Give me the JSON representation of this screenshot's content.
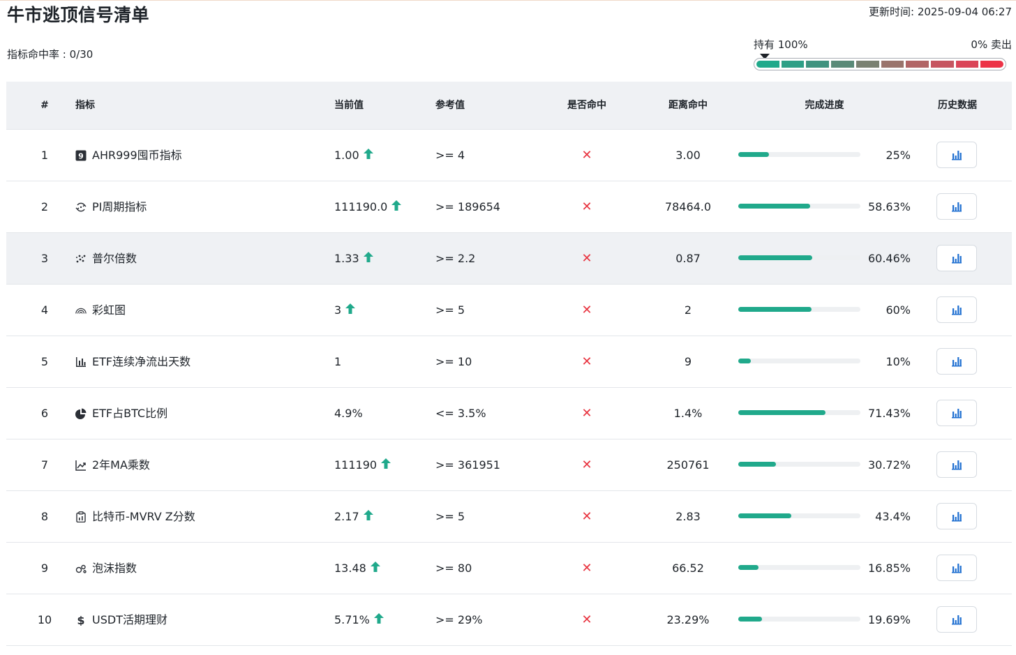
{
  "page": {
    "title": "牛市逃顶信号清单",
    "updated": "更新时间: 2025-09-04 06:27",
    "hit_rate": "指标命中率 : 0/30"
  },
  "gauge": {
    "left_label": "持有 100%",
    "right_label": "0% 卖出",
    "segment_colors": [
      "#20a98b",
      "#2e9f86",
      "#3f937f",
      "#5a8a78",
      "#7a8172",
      "#9a746c",
      "#b16566",
      "#c65560",
      "#da4558",
      "#ec3347"
    ],
    "pointer_level": 0
  },
  "table": {
    "headers": {
      "idx": "#",
      "name": "指标",
      "current": "当前值",
      "reference": "参考值",
      "hit": "是否命中",
      "distance": "距离命中",
      "progress": "完成进度",
      "history": "历史数据"
    },
    "rows": [
      {
        "idx": "1",
        "icon": "number-nine-icon",
        "name": "AHR999囤币指标",
        "current": "1.00",
        "trend": "up",
        "reference": ">= 4",
        "hit": "✕",
        "distance": "3.00",
        "progress": 0.25,
        "pct": "25%"
      },
      {
        "idx": "2",
        "icon": "cycle-icon",
        "name": "PI周期指标",
        "current": "111190.0",
        "trend": "up",
        "reference": ">= 189654",
        "hit": "✕",
        "distance": "78464.0",
        "progress": 0.5863,
        "pct": "58.63%"
      },
      {
        "idx": "3",
        "icon": "scatter-icon",
        "name": "普尔倍数",
        "current": "1.33",
        "trend": "up",
        "reference": ">= 2.2",
        "hit": "✕",
        "distance": "0.87",
        "progress": 0.6046,
        "pct": "60.46%"
      },
      {
        "idx": "4",
        "icon": "rainbow-icon",
        "name": "彩虹图",
        "current": "3",
        "trend": "up",
        "reference": ">= 5",
        "hit": "✕",
        "distance": "2",
        "progress": 0.6,
        "pct": "60%"
      },
      {
        "idx": "5",
        "icon": "bar-chart-icon",
        "name": "ETF连续净流出天数",
        "current": "1",
        "trend": "",
        "reference": ">= 10",
        "hit": "✕",
        "distance": "9",
        "progress": 0.1,
        "pct": "10%"
      },
      {
        "idx": "6",
        "icon": "pie-chart-icon",
        "name": "ETF占BTC比例",
        "current": "4.9%",
        "trend": "",
        "reference": "<= 3.5%",
        "hit": "✕",
        "distance": "1.4%",
        "progress": 0.7143,
        "pct": "71.43%"
      },
      {
        "idx": "7",
        "icon": "trend-line-icon",
        "name": "2年MA乘数",
        "current": "111190",
        "trend": "up",
        "reference": ">= 361951",
        "hit": "✕",
        "distance": "250761",
        "progress": 0.3072,
        "pct": "30.72%"
      },
      {
        "idx": "8",
        "icon": "clipboard-icon",
        "name": "比特币-MVRV Z分数",
        "current": "2.17",
        "trend": "up",
        "reference": ">= 5",
        "hit": "✕",
        "distance": "2.83",
        "progress": 0.434,
        "pct": "43.4%"
      },
      {
        "idx": "9",
        "icon": "bubbles-icon",
        "name": "泡沫指数",
        "current": "13.48",
        "trend": "up",
        "reference": ">= 80",
        "hit": "✕",
        "distance": "66.52",
        "progress": 0.1685,
        "pct": "16.85%"
      },
      {
        "idx": "10",
        "icon": "dollar-icon",
        "name": "USDT活期理财",
        "current": "5.71%",
        "trend": "up",
        "reference": ">= 29%",
        "hit": "✕",
        "distance": "23.29%",
        "progress": 0.1969,
        "pct": "19.69%"
      }
    ],
    "highlight_row": 2
  },
  "colors": {
    "accent": "#20a98b",
    "miss": "#e8333f",
    "history_icon": "#1f6fd1"
  }
}
